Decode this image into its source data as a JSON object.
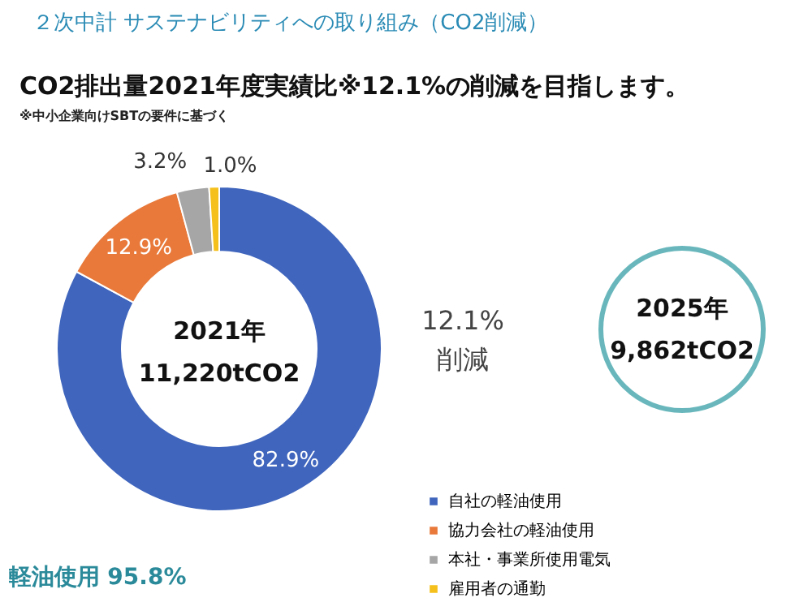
{
  "chart_data": {
    "type": "donut",
    "title": "２次中計 サステナビリティへの取り組み（CO2削減）",
    "subtitle": "CO2排出量2021年度実績比※12.1%の削減を目指します。",
    "categories": [
      "自社の軽油使用",
      "協力会社の軽油使用",
      "本社・事業所使用電気",
      "雇用者の通勤"
    ],
    "values": [
      82.9,
      12.9,
      3.2,
      1.0
    ],
    "colors": [
      "#3f65bd",
      "#e8793a",
      "#a6a6a6",
      "#f5c01c"
    ],
    "value_labels": [
      "82.9%",
      "12.9%",
      "3.2%",
      "1.0%"
    ],
    "legend": "bottom right",
    "annotations": [
      "※中小企業向けSBTの要件に基づく",
      "2021年",
      "11,220tCO2",
      "12.1%",
      "削減",
      "2025年",
      "9,862tCO2",
      "軽油使用 95.8%"
    ]
  }
}
